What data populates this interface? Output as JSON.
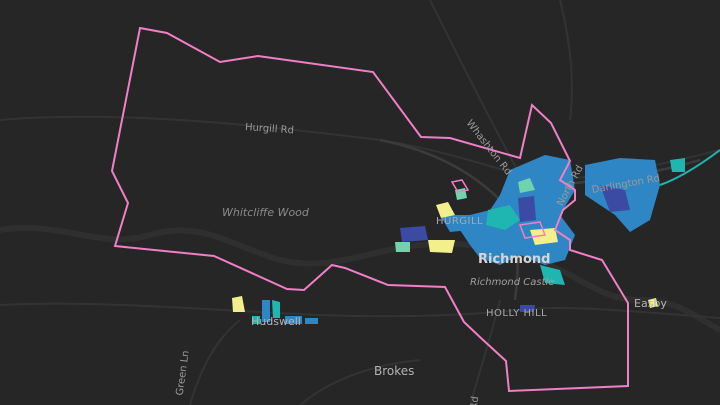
{
  "map": {
    "colors": {
      "background": "#262626",
      "boundary": "#f07fc6",
      "roads": "#3b3b3b",
      "roads_minor": "#333333",
      "river": "#2f2f2f",
      "blue": "#2f86c4",
      "teal": "#1fb5b0",
      "navy": "#3b4aa3",
      "yellow": "#f2ef8c",
      "mint": "#6fd3ad"
    },
    "labels": {
      "hurgill_rd": "Hurgill Rd",
      "whitcliffe_wood": "Whitcliffe Wood",
      "whashton_rd": "Whashton Rd",
      "darlington_rd": "Darlington Rd",
      "north_rd": "North Rd",
      "hurgill": "HURGILL",
      "richmond": "Richmond",
      "richmond_castle": "Richmond Castle",
      "holly_hill": "HOLLY HILL",
      "easby": "Easby",
      "hudswell": "Hudswell",
      "green_ln": "Green Ln",
      "brokes": "Brokes",
      "rd_fragment": "Rd"
    }
  }
}
